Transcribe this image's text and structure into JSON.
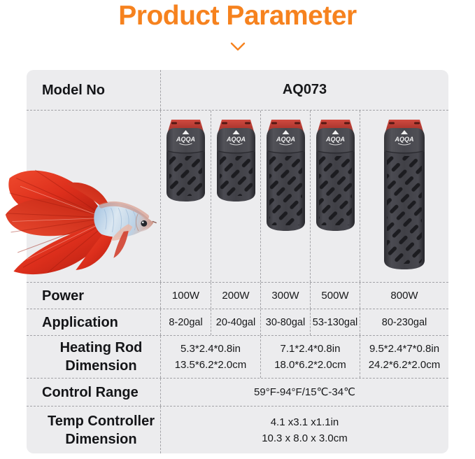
{
  "header": {
    "title": "Product Parameter",
    "chevron_icon": "chevron-down"
  },
  "table": {
    "model": {
      "label": "Model No",
      "value": "AQ073"
    },
    "power": {
      "label": "Power",
      "values": [
        "100W",
        "200W",
        "300W",
        "500W",
        "800W"
      ]
    },
    "application": {
      "label": "Application",
      "values": [
        "8-20gal",
        "20-40gal",
        "30-80gal",
        "53-130gal",
        "80-230gal"
      ]
    },
    "heating_rod": {
      "label": "Heating Rod Dimension",
      "values": [
        {
          "inches": "5.3*2.4*0.8in",
          "cm": "13.5*6.2*2.0cm"
        },
        {
          "inches": "7.1*2.4*0.8in",
          "cm": "18.0*6.2*2.0cm"
        },
        {
          "inches": "9.5*2.4*7*0.8in",
          "cm": "24.2*6.2*2.0cm"
        }
      ]
    },
    "control_range": {
      "label": "Control Range",
      "value": "59°F-94°F/15℃-34℃"
    },
    "temp_controller": {
      "label": "Temp Controller Dimension",
      "inches": "4.1 x3.1 x1.1in",
      "cm": "10.3 x 8.0 x 3.0cm"
    },
    "product_images": [
      {
        "name": "aquarium-heater-100w",
        "brand": "AQQA"
      },
      {
        "name": "aquarium-heater-200w",
        "brand": "AQQA"
      },
      {
        "name": "aquarium-heater-300w",
        "brand": "AQQA"
      },
      {
        "name": "aquarium-heater-500w",
        "brand": "AQQA"
      },
      {
        "name": "aquarium-heater-800w",
        "brand": "AQQA"
      }
    ]
  },
  "colors": {
    "accent_orange": "#f6821e",
    "table_background": "#ececee",
    "heater_cap_red": "#b5342c",
    "heater_body_gray": "#3f3f45",
    "fish_red": "#dd2f1c",
    "fish_blue": "#7fa9d6"
  }
}
